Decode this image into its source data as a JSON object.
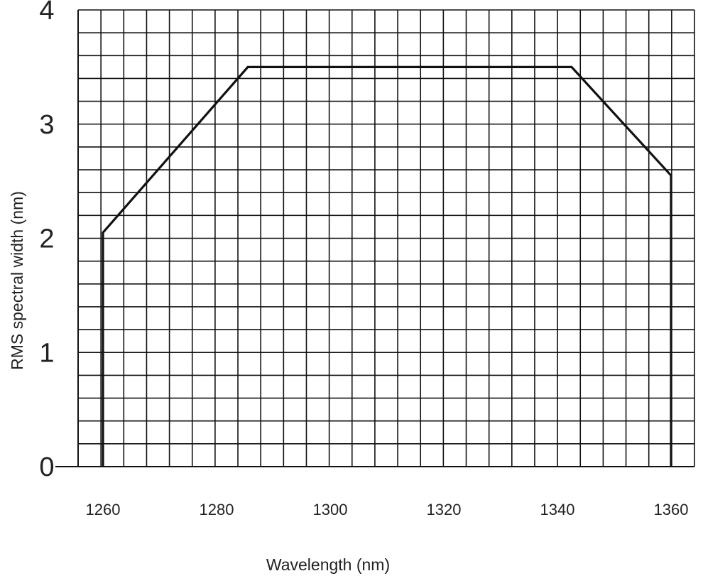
{
  "chart_data": {
    "type": "line",
    "title": "",
    "xlabel": "Wavelength (nm)",
    "ylabel": "RMS spectral width (nm)",
    "xlim": [
      1255,
      1362
    ],
    "ylim": [
      0,
      4
    ],
    "x_ticks": [
      1260,
      1280,
      1300,
      1320,
      1340,
      1360
    ],
    "y_ticks": [
      0,
      1,
      2,
      3,
      4
    ],
    "grid": true,
    "series": [
      {
        "x": [
          1260,
          1260,
          1285.5,
          1342.5,
          1360,
          1360
        ],
        "y": [
          0,
          2.05,
          3.5,
          3.5,
          2.55,
          0
        ]
      }
    ]
  }
}
